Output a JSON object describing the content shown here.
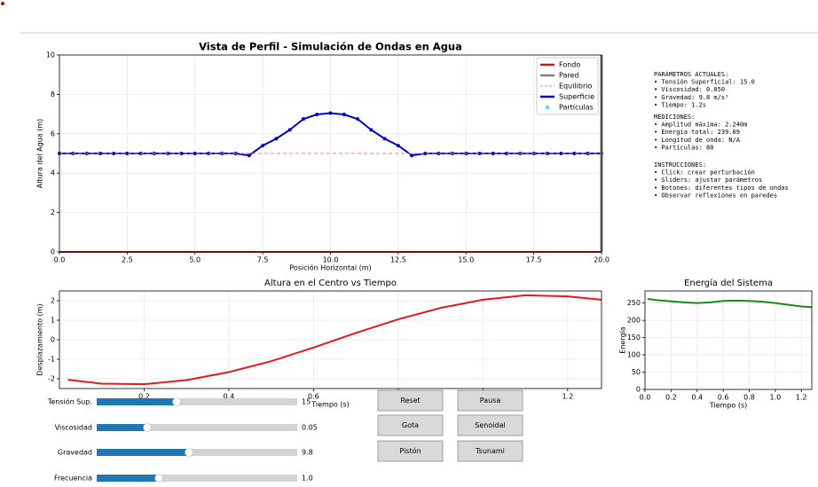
{
  "chart_data": [
    {
      "type": "line",
      "title": "Vista de Perfil - Simulación de Ondas en Agua",
      "xlabel": "Posición Horizontal (m)",
      "ylabel": "Altura del Agua (m)",
      "xlim": [
        0,
        20
      ],
      "ylim": [
        0,
        10
      ],
      "xticks": [
        {
          "value": 0,
          "label": "0.0"
        },
        {
          "value": 2.5,
          "label": "2.5"
        },
        {
          "value": 5,
          "label": "5.0"
        },
        {
          "value": 7.5,
          "label": "7.5"
        },
        {
          "value": 10,
          "label": "10.0"
        },
        {
          "value": 12.5,
          "label": "12.5"
        },
        {
          "value": 15,
          "label": "15.0"
        },
        {
          "value": 17.5,
          "label": "17.5"
        },
        {
          "value": 20,
          "label": "20.0"
        }
      ],
      "yticks": [
        0,
        2,
        4,
        6,
        8,
        10
      ],
      "grid": true,
      "legend": "upper right",
      "series": [
        {
          "name": "Fondo",
          "color": "#b22222",
          "style": "line",
          "x": [
            0,
            20
          ],
          "values": [
            0,
            0
          ]
        },
        {
          "name": "Pared",
          "color": "#808080",
          "style": "line",
          "x": [
            20,
            20
          ],
          "values": [
            0,
            10
          ]
        },
        {
          "name": "Equilibrio",
          "color": "#f08080",
          "style": "dashed",
          "x": [
            0,
            20
          ],
          "values": [
            5,
            5
          ]
        },
        {
          "name": "Superficie",
          "color": "#0000cc",
          "style": "line-markers",
          "x": [
            0,
            0.5,
            1,
            1.5,
            2,
            2.5,
            3,
            3.5,
            4,
            4.5,
            5,
            5.5,
            6,
            6.5,
            7,
            7.5,
            8,
            8.5,
            9,
            9.5,
            10,
            10.5,
            11,
            11.5,
            12,
            12.5,
            13,
            13.5,
            14,
            14.5,
            15,
            15.5,
            16,
            16.5,
            17,
            17.5,
            18,
            18.5,
            19,
            19.5,
            20
          ],
          "values": [
            5,
            5,
            5,
            5,
            5,
            5,
            5,
            5,
            5,
            5,
            5,
            5,
            5,
            5,
            4.9,
            5.4,
            5.75,
            6.2,
            6.75,
            6.98,
            7.05,
            6.98,
            6.75,
            6.2,
            5.75,
            5.4,
            4.9,
            5,
            5,
            5,
            5,
            5,
            5,
            5,
            5,
            5,
            5,
            5,
            5,
            5,
            5
          ]
        },
        {
          "name": "Partículas",
          "color": "#40e0e0",
          "style": "markers",
          "x": [
            0,
            0.5,
            1,
            1.5,
            2,
            2.5,
            3,
            3.5,
            4,
            4.5,
            5,
            5.5,
            6,
            6.5,
            7,
            7.5,
            8,
            8.5,
            9,
            9.5,
            10,
            10.5,
            11,
            11.5,
            12,
            12.5,
            13,
            13.5,
            14,
            14.5,
            15,
            15.5,
            16,
            16.5,
            17,
            17.5,
            18,
            18.5,
            19,
            19.5,
            20
          ],
          "values": [
            5,
            5,
            5,
            5,
            5,
            5,
            5,
            5,
            5,
            5,
            5,
            5,
            5,
            5,
            4.9,
            5.4,
            5.75,
            6.2,
            6.75,
            6.98,
            7.05,
            6.98,
            6.75,
            6.2,
            5.75,
            5.4,
            4.9,
            5,
            5,
            5,
            5,
            5,
            5,
            5,
            5,
            5,
            5,
            5,
            5,
            5,
            5
          ]
        }
      ]
    },
    {
      "type": "line",
      "title": "Altura en el Centro vs Tiempo",
      "xlabel": "Tiempo (s)",
      "ylabel": "Desplazamiento (m)",
      "xlim": [
        0,
        1.28
      ],
      "ylim": [
        -2.5,
        2.5
      ],
      "xticks": [
        0.2,
        0.4,
        0.6,
        0.8,
        1,
        1.2
      ],
      "yticks": [
        -2,
        -1,
        0,
        1,
        2
      ],
      "grid": true,
      "x": [
        0.02,
        0.1,
        0.2,
        0.3,
        0.4,
        0.5,
        0.6,
        0.7,
        0.8,
        0.9,
        1,
        1.1,
        1.2,
        1.28
      ],
      "series": [
        {
          "color": "#e41a1c",
          "style": "line",
          "values": [
            -2.05,
            -2.25,
            -2.28,
            -2.07,
            -1.66,
            -1.1,
            -0.4,
            0.35,
            1.05,
            1.63,
            2.05,
            2.28,
            2.22,
            2.05
          ]
        }
      ]
    },
    {
      "type": "line",
      "title": "Energía del Sistema",
      "xlabel": "Tiempo (s)",
      "ylabel": "Energía",
      "xlim": [
        0,
        1.28
      ],
      "ylim": [
        0,
        285
      ],
      "xticks": [
        {
          "value": 0,
          "label": "0.0"
        },
        0.2,
        0.4,
        0.6,
        0.8,
        {
          "value": 1,
          "label": "1.0"
        },
        1.2
      ],
      "yticks": [
        0,
        50,
        100,
        150,
        200,
        250
      ],
      "grid": true,
      "x": [
        0.02,
        0.1,
        0.2,
        0.3,
        0.4,
        0.5,
        0.6,
        0.7,
        0.8,
        0.9,
        1,
        1.1,
        1.2,
        1.28
      ],
      "series": [
        {
          "color": "#1a8a1a",
          "style": "line",
          "values": [
            262,
            258,
            255,
            252,
            250,
            252,
            256,
            257,
            256,
            254,
            250,
            245,
            240,
            238
          ]
        }
      ]
    }
  ],
  "info": [
    {
      "heading": "PARÁMETROS ACTUALES:",
      "lines": [
        "• Tensión Superficial: 15.0",
        "• Viscosidad: 0.050",
        "• Gravedad: 9.8 m/s²",
        "• Tiempo: 1.2s"
      ]
    },
    {
      "heading": "MEDICIONES:",
      "lines": [
        "• Amplitud máxima: 2.240m",
        "• Energía total: 239.09",
        "• Longitud de onda: N/A",
        "• Partículas: 80"
      ]
    },
    {
      "heading": "INSTRUCCIONES:",
      "lines": [
        "• Click: crear perturbación",
        "• Sliders: ajustar parámetros",
        "• Botones: diferentes tipos de ondas",
        "• Observar reflexiones en paredes"
      ]
    }
  ],
  "sliders": [
    {
      "label": "Tensión Sup.",
      "value": "15"
    },
    {
      "label": "Viscosidad",
      "value": "0.05"
    },
    {
      "label": "Gravedad",
      "value": "9.8"
    },
    {
      "label": "Frecuencia",
      "value": "1.0"
    }
  ],
  "buttons": [
    "Reset",
    "Pausa",
    "Gota",
    "Senoidal",
    "Pistón",
    "Tsunami"
  ]
}
